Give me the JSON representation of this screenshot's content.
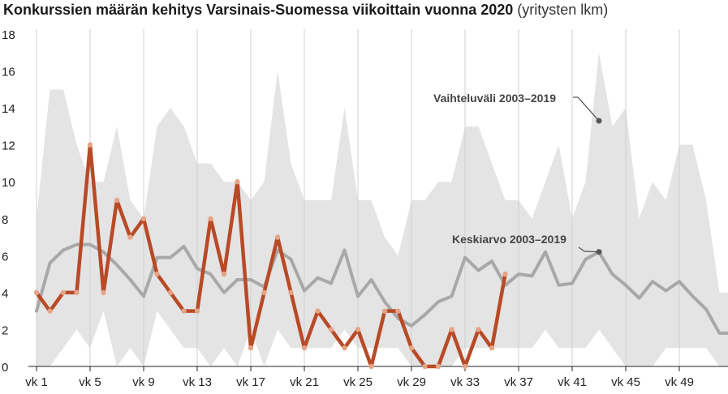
{
  "chart_data": {
    "type": "line",
    "title": "Konkurssien määrän kehitys Varsinais-Suomessa viikoittain vuonna 2020",
    "unit_label": "(yritysten lkm)",
    "ylim": [
      0,
      18
    ],
    "y_ticks": [
      0,
      2,
      4,
      6,
      8,
      10,
      12,
      14,
      16,
      18
    ],
    "x_range": [
      1,
      53
    ],
    "x_tick_weeks": [
      1,
      5,
      9,
      13,
      17,
      21,
      25,
      29,
      33,
      37,
      41,
      45,
      49
    ],
    "x_tick_labels": [
      "vk 1",
      "vk 5",
      "vk 9",
      "vk 13",
      "vk 17",
      "vk 21",
      "vk 25",
      "vk 29",
      "vk 33",
      "vk 37",
      "vk 41",
      "vk 45",
      "vk 49"
    ],
    "grid": "vertical",
    "range_band": {
      "name": "Vaihteluväli 2003–2019",
      "x": [
        1,
        2,
        3,
        4,
        5,
        6,
        7,
        8,
        9,
        10,
        11,
        12,
        13,
        14,
        15,
        16,
        17,
        18,
        19,
        20,
        21,
        22,
        23,
        24,
        25,
        26,
        27,
        28,
        29,
        30,
        31,
        32,
        33,
        34,
        35,
        36,
        37,
        38,
        39,
        40,
        41,
        42,
        43,
        44,
        45,
        46,
        47,
        48,
        49,
        50,
        51,
        52,
        53
      ],
      "upper": [
        8,
        15,
        15,
        12,
        10,
        10,
        13,
        9,
        8,
        13,
        14,
        13,
        11,
        11,
        10,
        10,
        9,
        10,
        16,
        11,
        9,
        9,
        9,
        14,
        9,
        9,
        7,
        6,
        9,
        9,
        10,
        10,
        13,
        13,
        11,
        9,
        9,
        8,
        10,
        12,
        8,
        10,
        17,
        13,
        14,
        8,
        10,
        9,
        12,
        12,
        9,
        4,
        4
      ],
      "lower": [
        0,
        0,
        1,
        2,
        1,
        3,
        0,
        1,
        0,
        3,
        2,
        1,
        1,
        0,
        1,
        0,
        2,
        0,
        2,
        1,
        1,
        1,
        1,
        2,
        1,
        1,
        1,
        1,
        0,
        0,
        0,
        0,
        1,
        1,
        1,
        1,
        1,
        1,
        2,
        1,
        1,
        1,
        2,
        1,
        0,
        0,
        0,
        1,
        1,
        1,
        1,
        0,
        0
      ]
    },
    "series": [
      {
        "name": "Keskiarvo 2003–2019",
        "color": "#a8a8a8",
        "x": [
          1,
          2,
          3,
          4,
          5,
          6,
          7,
          8,
          9,
          10,
          11,
          12,
          13,
          14,
          15,
          16,
          17,
          18,
          19,
          20,
          21,
          22,
          23,
          24,
          25,
          26,
          27,
          28,
          29,
          30,
          31,
          32,
          33,
          34,
          35,
          36,
          37,
          38,
          39,
          40,
          41,
          42,
          43,
          44,
          45,
          46,
          47,
          48,
          49,
          50,
          51,
          52,
          53
        ],
        "values": [
          3.0,
          5.6,
          6.3,
          6.6,
          6.6,
          6.2,
          5.5,
          4.7,
          3.8,
          5.9,
          5.9,
          6.5,
          5.3,
          5.0,
          4.0,
          4.7,
          4.7,
          4.3,
          6.3,
          5.8,
          4.1,
          4.8,
          4.5,
          6.3,
          3.8,
          4.7,
          3.5,
          2.6,
          2.2,
          2.8,
          3.5,
          3.8,
          5.9,
          5.2,
          5.7,
          4.4,
          5.0,
          4.9,
          6.2,
          4.4,
          4.5,
          5.8,
          6.2,
          5.0,
          4.4,
          3.7,
          4.6,
          4.1,
          4.6,
          3.8,
          3.1,
          1.8,
          1.8
        ]
      },
      {
        "name": "2020",
        "color": "#b84a26",
        "x": [
          1,
          2,
          3,
          4,
          5,
          6,
          7,
          8,
          9,
          10,
          11,
          12,
          13,
          14,
          15,
          16,
          17,
          18,
          19,
          20,
          21,
          22,
          23,
          24,
          25,
          26,
          27,
          28,
          29,
          30,
          31,
          32,
          33,
          34,
          35,
          36
        ],
        "values": [
          4,
          3,
          4,
          4,
          12,
          4,
          9,
          7,
          8,
          5,
          4,
          3,
          3,
          8,
          5,
          10,
          1,
          4,
          7,
          4,
          1,
          3,
          2,
          1,
          2,
          0,
          3,
          3,
          1,
          0,
          0,
          2,
          0,
          2,
          1,
          5
        ]
      }
    ],
    "annotations": [
      {
        "text": "Vaihteluväli 2003–2019",
        "target_week": 43,
        "target_value": 13.3
      },
      {
        "text": "Keskiarvo 2003–2019",
        "target_week": 43,
        "target_value": 6.2
      }
    ]
  }
}
